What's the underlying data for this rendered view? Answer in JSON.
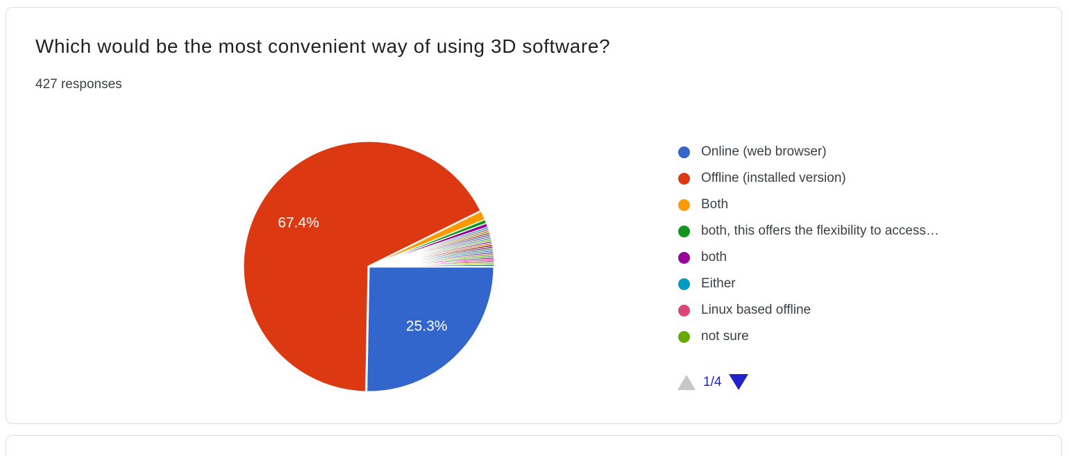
{
  "card": {
    "title": "Which would be the most convenient way of using 3D software?",
    "responses_label": "427 responses",
    "border_color": "#dadce0"
  },
  "chart_data": {
    "type": "pie",
    "title": "Which would be the most convenient way of using 3D software?",
    "subtitle": "427 responses",
    "total_responses": 427,
    "legend_position": "right",
    "slices": [
      {
        "label": "Online (web browser)",
        "percent": 25.3,
        "color": "#3366CC",
        "data_label": "25.3%"
      },
      {
        "label": "Offline (installed version)",
        "percent": 67.4,
        "color": "#DC3912",
        "data_label": "67.4%"
      },
      {
        "label": "Both",
        "percent": 1.2,
        "color": "#FF9900"
      },
      {
        "label": "both, this offers the flexibility to access…",
        "percent": 0.5,
        "color": "#109618"
      },
      {
        "label": "both",
        "percent": 0.5,
        "color": "#990099"
      },
      {
        "label": "Either",
        "percent": 0.23,
        "color": "#0099C6"
      },
      {
        "label": "Linux based offline",
        "percent": 0.23,
        "color": "#DD4477"
      },
      {
        "label": "not sure",
        "percent": 0.23,
        "color": "#66AA00"
      }
    ],
    "unlabeled_other_slices": {
      "count": 19,
      "percent_each": 0.23,
      "colors": [
        "#B82E2E",
        "#316395",
        "#994499",
        "#22AA99",
        "#AAAA11",
        "#6633CC",
        "#E67300",
        "#8B0707",
        "#651067",
        "#329262",
        "#5574A6",
        "#3B3EAC",
        "#B77322",
        "#16D620",
        "#B91383",
        "#F4359E",
        "#9C5935",
        "#A9C413",
        "#2A778D"
      ]
    }
  },
  "pagination": {
    "page_label": "1/4",
    "up_arrow_color": "#c7c7c7",
    "down_arrow_color": "#2222cc",
    "label_color": "#2222cc"
  }
}
